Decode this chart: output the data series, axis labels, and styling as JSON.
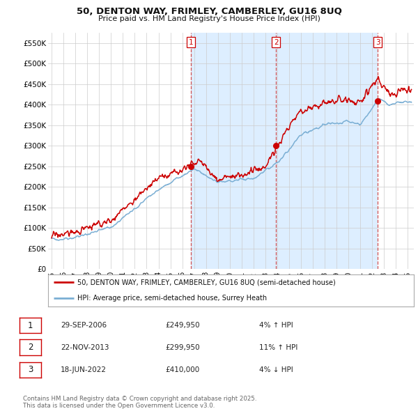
{
  "title": "50, DENTON WAY, FRIMLEY, CAMBERLEY, GU16 8UQ",
  "subtitle": "Price paid vs. HM Land Registry's House Price Index (HPI)",
  "ylabel_ticks": [
    "£0",
    "£50K",
    "£100K",
    "£150K",
    "£200K",
    "£250K",
    "£300K",
    "£350K",
    "£400K",
    "£450K",
    "£500K",
    "£550K"
  ],
  "ytick_values": [
    0,
    50000,
    100000,
    150000,
    200000,
    250000,
    300000,
    350000,
    400000,
    450000,
    500000,
    550000
  ],
  "ylim": [
    0,
    575000
  ],
  "xlim_start": 1994.7,
  "xlim_end": 2025.5,
  "sales": [
    {
      "date": 2006.75,
      "price": 249950,
      "label": "1"
    },
    {
      "date": 2013.9,
      "price": 299950,
      "label": "2"
    },
    {
      "date": 2022.46,
      "price": 410000,
      "label": "3"
    }
  ],
  "vline_dates": [
    2006.75,
    2013.9,
    2022.46
  ],
  "legend_line1": "50, DENTON WAY, FRIMLEY, CAMBERLEY, GU16 8UQ (semi-detached house)",
  "legend_line2": "HPI: Average price, semi-detached house, Surrey Heath",
  "table_rows": [
    {
      "num": "1",
      "date": "29-SEP-2006",
      "price": "£249,950",
      "change": "4% ↑ HPI"
    },
    {
      "num": "2",
      "date": "22-NOV-2013",
      "price": "£299,950",
      "change": "11% ↑ HPI"
    },
    {
      "num": "3",
      "date": "18-JUN-2022",
      "price": "£410,000",
      "change": "4% ↓ HPI"
    }
  ],
  "footer": "Contains HM Land Registry data © Crown copyright and database right 2025.\nThis data is licensed under the Open Government Licence v3.0.",
  "line_color_red": "#cc0000",
  "line_color_blue": "#7bafd4",
  "shade_color": "#ddeeff",
  "background_color": "#ffffff",
  "grid_color": "#cccccc"
}
